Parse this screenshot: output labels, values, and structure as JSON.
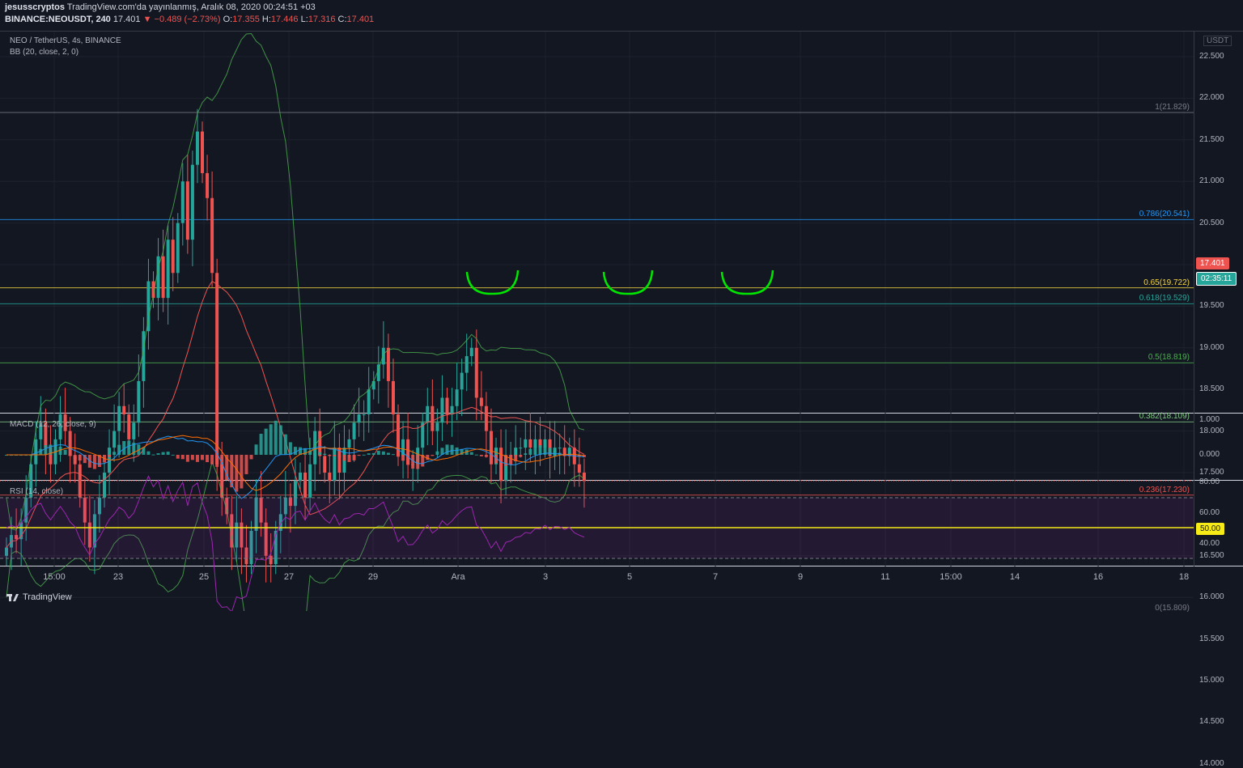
{
  "header": {
    "line1_author": "jesusscryptos",
    "line1_rest": "TradingView.com'da yayınlanmış, Aralık 08, 2020 00:24:51 +03",
    "symbol": "BINANCE:NEOUSDT, 240",
    "last": "17.401",
    "change": "−0.489 (−2.73%)",
    "o_label": "O:",
    "o": "17.355",
    "h_label": "H:",
    "h": "17.446",
    "l_label": "L:",
    "l": "17.316",
    "c_label": "C:",
    "c": "17.401"
  },
  "legend": {
    "main": "NEO / TetherUS, 4s, BINANCE",
    "bb": "BB (20, close, 2, 0)",
    "macd": "MACD (12, 26, close, 9)",
    "rsi": "RSI (14, close)"
  },
  "axis": {
    "currency": "USDT",
    "price_ticks": [
      "22.500",
      "22.000",
      "21.500",
      "21.000",
      "20.500",
      "20.000",
      "19.500",
      "19.000",
      "18.500",
      "18.000",
      "17.500",
      "16.500",
      "16.000",
      "15.500",
      "15.000",
      "14.500",
      "14.000"
    ],
    "macd_ticks": [
      "1.000",
      "0.000"
    ],
    "rsi_ticks": [
      "80.00",
      "60.00",
      "40.00"
    ],
    "x_ticks": [
      "15:00",
      "23",
      "25",
      "27",
      "29",
      "Ara",
      "3",
      "5",
      "7",
      "9",
      "11",
      "15:00",
      "14",
      "16",
      "18"
    ]
  },
  "badges": {
    "price": "17.401",
    "countdown": "02:35:11",
    "rsi": "50.00"
  },
  "fib": [
    {
      "label": "1(21.829)",
      "value": 21.829,
      "color": "#787b86"
    },
    {
      "label": "0.786(20.541)",
      "value": 20.541,
      "color": "#2196f3"
    },
    {
      "label": "0.65(19.722)",
      "value": 19.722,
      "color": "#f6d743"
    },
    {
      "label": "0.618(19.529)",
      "value": 19.529,
      "color": "#26a69a"
    },
    {
      "label": "0.5(18.819)",
      "value": 18.819,
      "color": "#4caf50"
    },
    {
      "label": "0.382(18.109)",
      "value": 18.109,
      "color": "#81c784"
    },
    {
      "label": "0.236(17.230)",
      "value": 17.23,
      "color": "#ef5350"
    },
    {
      "label": "0(15.809)",
      "value": 15.809,
      "color": "#787b86"
    }
  ],
  "brand": "TradingView",
  "colors": {
    "bg": "#131722",
    "up": "#26a69a",
    "down": "#ef5350",
    "annotation": "#00e600",
    "rsi": "#9c27b0"
  },
  "chart_data": {
    "type": "candlestick",
    "title": "NEO / TetherUS, 4s, BINANCE",
    "ylim": [
      13.9,
      22.9
    ],
    "closes": [
      16.6,
      16.75,
      16.7,
      16.9,
      17.2,
      17.6,
      17.9,
      18.1,
      17.8,
      17.6,
      17.9,
      18.2,
      18.0,
      17.7,
      17.6,
      17.2,
      16.9,
      16.6,
      17.0,
      17.2,
      17.5,
      17.8,
      18.0,
      18.3,
      18.2,
      17.9,
      18.1,
      18.6,
      19.2,
      19.8,
      19.6,
      20.1,
      19.6,
      20.3,
      19.9,
      20.5,
      21.0,
      20.3,
      21.2,
      21.6,
      21.1,
      20.8,
      19.9,
      17.6,
      17.2,
      17.0,
      16.6,
      16.9,
      16.6,
      16.4,
      16.8,
      17.2,
      16.9,
      16.5,
      16.4,
      16.8,
      17.0,
      17.2,
      17.1,
      17.4,
      17.5,
      17.2,
      17.6,
      18.0,
      17.7,
      17.5,
      17.4,
      17.8,
      17.5,
      17.8,
      17.9,
      18.1,
      18.2,
      18.2,
      18.5,
      18.6,
      18.8,
      19.0,
      18.6,
      18.2,
      17.7,
      17.9,
      17.6,
      17.6,
      17.8,
      18.1,
      18.3,
      18.0,
      18.1,
      18.4,
      18.2,
      18.3,
      18.5,
      18.7,
      18.9,
      19.0,
      18.4,
      18.3,
      18.0,
      17.6,
      17.8,
      17.4,
      17.7,
      17.7,
      17.8,
      17.8,
      17.9,
      17.8,
      17.9,
      17.8,
      17.9,
      17.7,
      17.8,
      17.8,
      17.7,
      17.8,
      17.6,
      17.5,
      17.4
    ],
    "first_x": 8,
    "step": 6.05
  }
}
